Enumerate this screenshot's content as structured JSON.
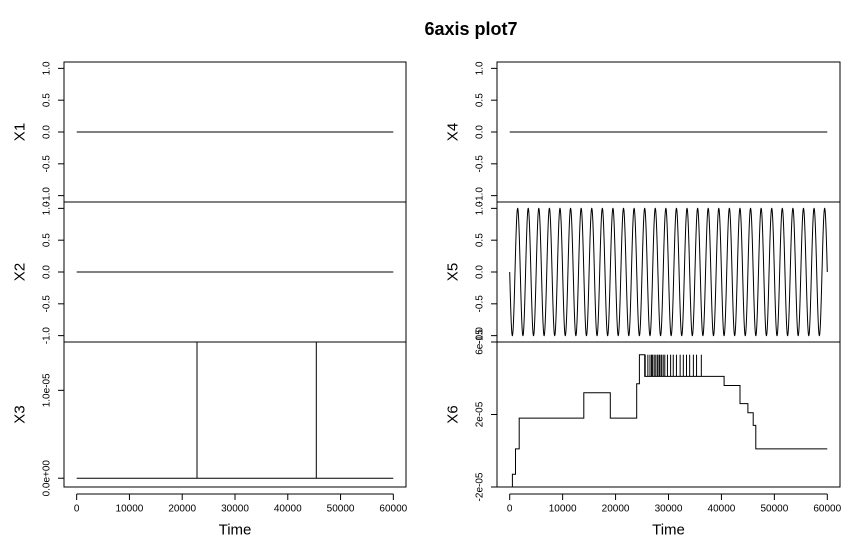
{
  "title": "6axis plot7",
  "chart_data": [
    {
      "type": "line",
      "column": "left",
      "xlabel": "Time",
      "xlim": [
        -2400,
        62400
      ],
      "xticks": [
        0,
        10000,
        20000,
        30000,
        40000,
        50000,
        60000
      ],
      "xtick_labels": [
        "0",
        "10000",
        "20000",
        "30000",
        "40000",
        "50000",
        "60000"
      ],
      "panels": [
        {
          "ylabel": "X1",
          "ylim": [
            -1.1,
            1.1
          ],
          "yticks": [
            -1.0,
            -0.5,
            0.0,
            0.5,
            1.0
          ],
          "ytick_labels": [
            "-1.0",
            "-0.5",
            "0.0",
            "0.5",
            "1.0"
          ],
          "series": [
            {
              "kind": "points",
              "x": [
                0,
                60000
              ],
              "y": [
                0,
                0
              ]
            }
          ]
        },
        {
          "ylabel": "X2",
          "ylim": [
            -1.1,
            1.1
          ],
          "yticks": [
            -1.0,
            -0.5,
            0.0,
            0.5,
            1.0
          ],
          "ytick_labels": [
            "-1.0",
            "-0.5",
            "0.0",
            "0.5",
            "1.0"
          ],
          "series": [
            {
              "kind": "points",
              "x": [
                0,
                60000
              ],
              "y": [
                0,
                0
              ]
            }
          ]
        },
        {
          "ylabel": "X3",
          "ylim": [
            -1e-06,
            1.55e-05
          ],
          "yticks": [
            0,
            1e-05
          ],
          "ytick_labels": [
            "0.0e+00",
            "1.0e-05"
          ],
          "series": [
            {
              "kind": "points",
              "x": [
                0,
                22800,
                22800,
                22800,
                45400,
                45400,
                45400,
                60000
              ],
              "y": [
                0,
                0,
                1.55e-05,
                0,
                0,
                1.55e-05,
                0,
                0
              ]
            }
          ]
        }
      ]
    },
    {
      "type": "line",
      "column": "right",
      "xlabel": "Time",
      "xlim": [
        -2400,
        62400
      ],
      "xticks": [
        0,
        10000,
        20000,
        30000,
        40000,
        50000,
        60000
      ],
      "xtick_labels": [
        "0",
        "10000",
        "20000",
        "30000",
        "40000",
        "50000",
        "60000"
      ],
      "panels": [
        {
          "ylabel": "X4",
          "ylim": [
            -1.1,
            1.1
          ],
          "yticks": [
            -1.0,
            -0.5,
            0.0,
            0.5,
            1.0
          ],
          "ytick_labels": [
            "-1.0",
            "-0.5",
            "0.0",
            "0.5",
            "1.0"
          ],
          "series": [
            {
              "kind": "points",
              "x": [
                0,
                60000
              ],
              "y": [
                0,
                0
              ]
            }
          ]
        },
        {
          "ylabel": "X5",
          "ylim": [
            -1.1,
            1.1
          ],
          "yticks": [
            -1.0,
            -0.5,
            0.0,
            0.5,
            1.0
          ],
          "ytick_labels": [
            "-1.0",
            "-0.5",
            "0.0",
            "0.5",
            "1.0"
          ],
          "series": [
            {
              "kind": "sine",
              "x_start": 0,
              "x_end": 60000,
              "amplitude": 1.0,
              "cycles": 30
            }
          ]
        },
        {
          "ylabel": "X6",
          "ylim": [
            -2e-05,
            6e-05
          ],
          "yticks": [
            -2e-05,
            2e-05,
            6e-05
          ],
          "ytick_labels": [
            "-2e-05",
            "2e-05",
            "6e-05"
          ],
          "series": [
            {
              "kind": "points",
              "x": [
                500,
                500,
                1100,
                1100,
                1800,
                1800,
                14000,
                14000,
                19000,
                19000,
                24000,
                24000,
                24500,
                24500,
                25500,
                25500,
                40500,
                40500,
                43500,
                43500,
                45000,
                45000,
                46000,
                46000,
                46500,
                46500,
                60000
              ],
              "y": [
                -2e-05,
                -1.3e-05,
                -1.3e-05,
                1e-06,
                1e-06,
                1.8e-05,
                1.8e-05,
                3.2e-05,
                3.2e-05,
                1.8e-05,
                1.8e-05,
                3.7e-05,
                3.7e-05,
                5.3e-05,
                5.3e-05,
                4.1e-05,
                4.1e-05,
                3.6e-05,
                3.6e-05,
                2.6e-05,
                2.6e-05,
                2.1e-05,
                2.1e-05,
                1.4e-05,
                1.4e-05,
                1e-06,
                1e-06
              ]
            },
            {
              "kind": "spikes",
              "y_from": 4.1e-05,
              "y_to": 5.3e-05,
              "x": [
                25600,
                26100,
                26500,
                26800,
                27000,
                27300,
                27600,
                27900,
                28200,
                28400,
                28700,
                29000,
                29300,
                29800,
                30400,
                30900,
                31500,
                32200,
                32800,
                33400,
                34000,
                34700,
                35300,
                36200
              ]
            }
          ]
        }
      ]
    }
  ]
}
